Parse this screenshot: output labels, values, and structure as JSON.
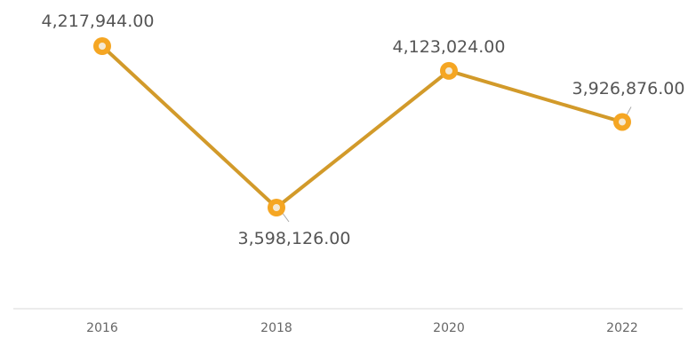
{
  "chart_data": {
    "type": "line",
    "categories": [
      "2016",
      "2018",
      "2020",
      "2022"
    ],
    "series": [
      {
        "values": [
          4217944.0,
          3598126.0,
          4123024.0,
          3926876.0
        ],
        "data_labels": [
          "4,217,944.00",
          "3,598,126.00",
          "4,123,024.00",
          "3,926,876.00"
        ]
      }
    ],
    "title": "",
    "xlabel": "",
    "ylabel": "",
    "ylim": [
      3300000,
      4350000
    ],
    "grid": false,
    "legend": "none",
    "colors": {
      "line": "#D29A2A",
      "marker_fill": "#F5A623",
      "marker_center": "#F4E9D4",
      "axis": "#E6E6E6",
      "leader": "#A8A8A8"
    }
  }
}
